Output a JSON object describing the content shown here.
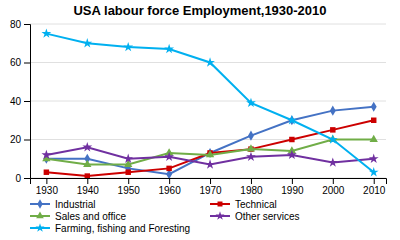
{
  "chart_data": {
    "type": "line",
    "title": "USA labour force Employment,1930-2010",
    "x": [
      1930,
      1940,
      1950,
      1960,
      1970,
      1980,
      1990,
      2000,
      2010
    ],
    "series": [
      {
        "name": "Industrial",
        "color": "#4472C4",
        "marker": "diamond",
        "values": [
          10,
          10,
          5,
          2,
          13,
          22,
          30,
          35,
          37
        ]
      },
      {
        "name": "Technical",
        "color": "#CC0000",
        "marker": "square",
        "values": [
          3,
          1,
          3,
          5,
          13,
          15,
          20,
          25,
          30
        ]
      },
      {
        "name": "Sales and office",
        "color": "#70AD47",
        "marker": "triangle",
        "values": [
          10,
          7,
          7,
          13,
          12,
          15,
          14,
          20,
          20
        ]
      },
      {
        "name": "Other services",
        "color": "#7030A0",
        "marker": "star",
        "values": [
          12,
          16,
          10,
          11,
          7,
          11,
          12,
          8,
          10
        ]
      },
      {
        "name": "Farming, fishing and Foresting",
        "color": "#00B0F0",
        "marker": "star",
        "values": [
          75,
          70,
          68,
          67,
          60,
          39,
          30,
          20,
          3
        ]
      }
    ],
    "xlim": [
      1926,
      2013
    ],
    "xticks": [
      1930,
      1940,
      1950,
      1960,
      1970,
      1980,
      1990,
      2000,
      2010
    ],
    "ylim": [
      0,
      80
    ],
    "yticks": [
      0,
      20,
      40,
      60,
      80
    ],
    "grid": true,
    "legend": "bottom"
  }
}
